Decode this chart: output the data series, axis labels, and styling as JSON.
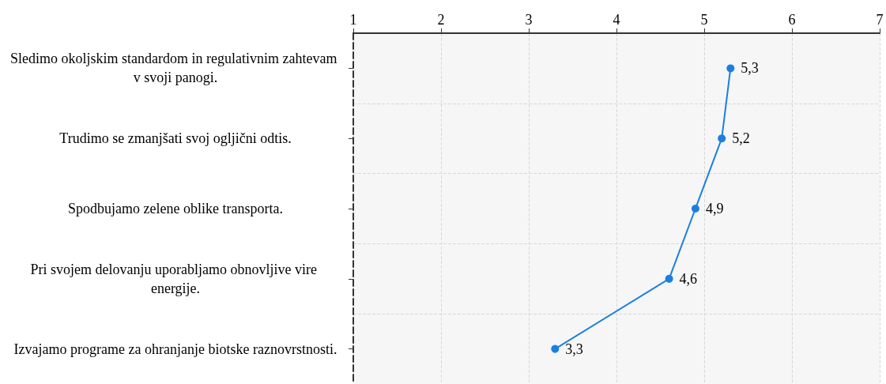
{
  "chart_data": {
    "type": "line",
    "orientation": "horizontal",
    "categories": [
      "Sledimo okoljskim standardom in regulativnim zahtevam v svoji panogi.",
      "Trudimo se zmanjšati svoj ogljični odtis.",
      "Spodbujamo zelene oblike transporta.",
      "Pri svojem delovanju uporabljamo obnovljive vire energije.",
      "Izvajamo programe za ohranjanje biotske raznovrstnosti."
    ],
    "series": [
      {
        "color": "#1a7fe0",
        "values": [
          5.3,
          5.2,
          4.9,
          4.6,
          3.3
        ],
        "value_labels": [
          "5,3",
          "5,2",
          "4,9",
          "4,6",
          "3,3"
        ]
      }
    ],
    "xlim": [
      1,
      7
    ],
    "xticks": [
      1,
      2,
      3,
      4,
      5,
      6,
      7
    ],
    "grid": true,
    "marker": "circle",
    "line_style": "solid"
  }
}
